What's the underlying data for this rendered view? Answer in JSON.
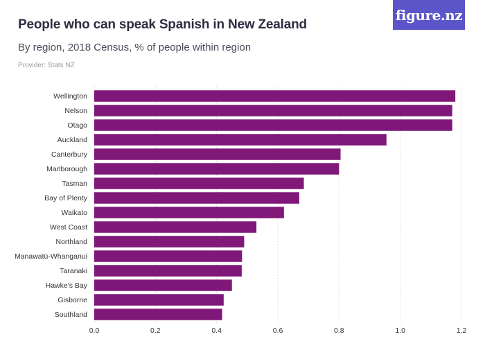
{
  "header": {
    "title": "People who can speak Spanish in New Zealand",
    "subtitle": "By region, 2018 Census, % of people within region",
    "provider": "Provider: Stats NZ",
    "logo_text": "figure.nz"
  },
  "colors": {
    "bar": "#7f1878",
    "logo_bg": "#5b55c9"
  },
  "chart_data": {
    "type": "bar",
    "orientation": "horizontal",
    "categories": [
      "Wellington",
      "Nelson",
      "Otago",
      "Auckland",
      "Canterbury",
      "Marlborough",
      "Tasman",
      "Bay of Plenty",
      "Waikato",
      "West Coast",
      "Northland",
      "Manawatū-Whanganui",
      "Taranaki",
      "Hawke's Bay",
      "Gisborne",
      "Southland"
    ],
    "values": [
      1.18,
      1.17,
      1.17,
      0.955,
      0.805,
      0.8,
      0.685,
      0.67,
      0.62,
      0.53,
      0.49,
      0.483,
      0.482,
      0.45,
      0.423,
      0.418
    ],
    "xlim": [
      0,
      1.2
    ],
    "xticks": [
      "0.0",
      "0.2",
      "0.4",
      "0.6",
      "0.8",
      "1.0",
      "1.2"
    ],
    "grid": true
  }
}
